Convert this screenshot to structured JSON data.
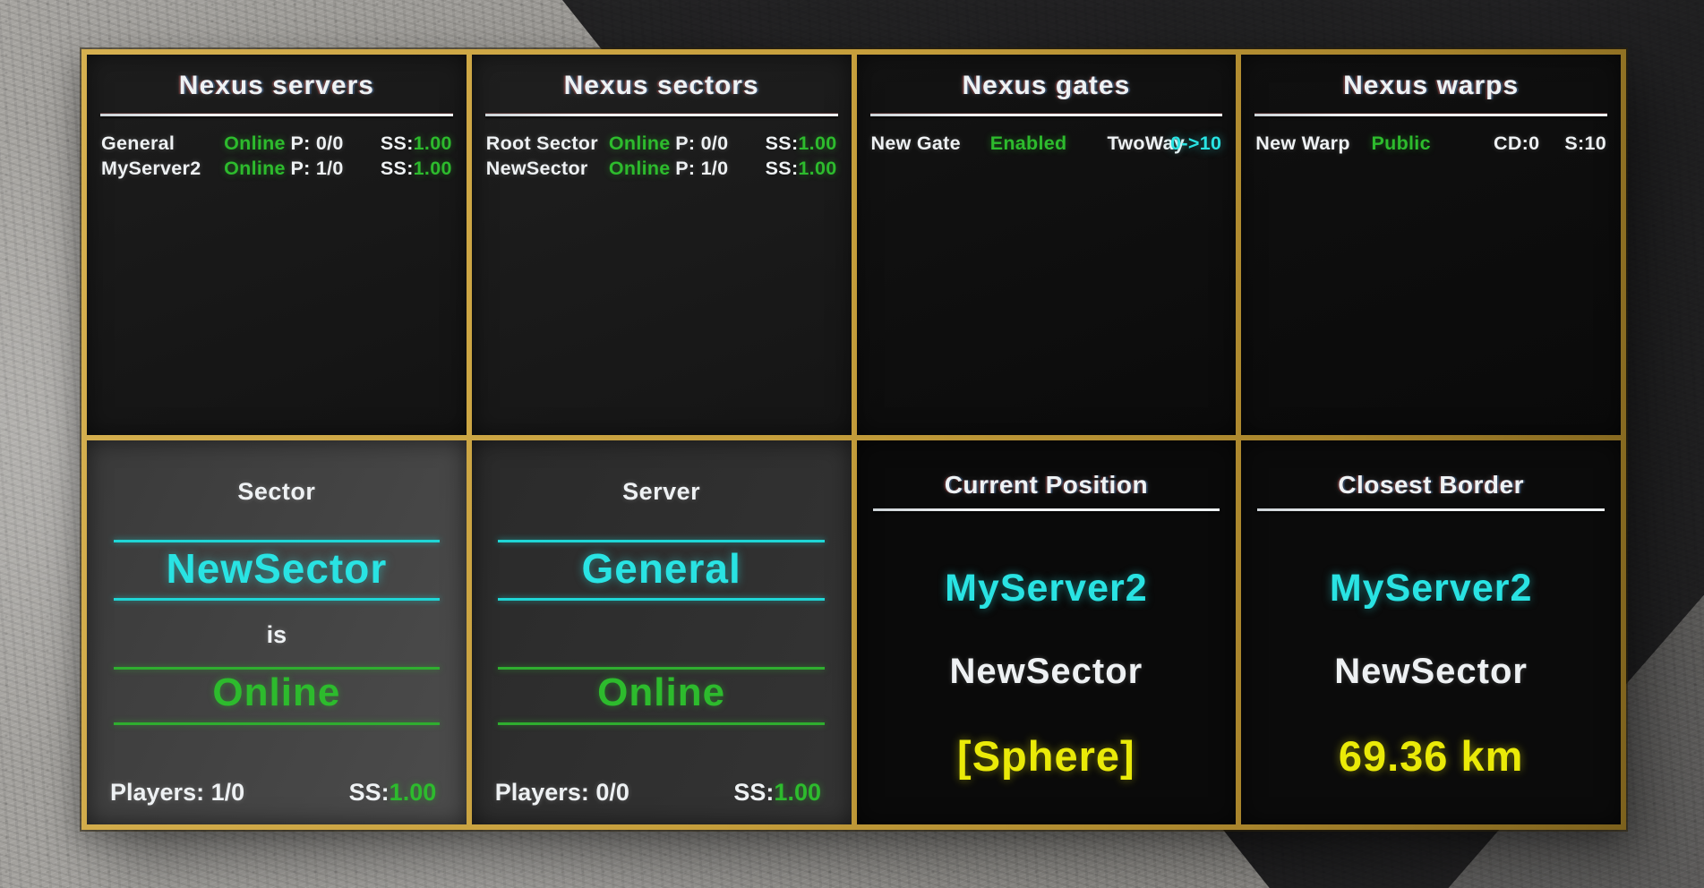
{
  "colors": {
    "frame_gold": "#c69f3c",
    "text_white": "#eef1f3",
    "status_green": "#2dbb2d",
    "accent_cyan": "#29e3e3",
    "highlight_yellow": "#eaea08"
  },
  "panels": {
    "servers": {
      "title": "Nexus servers",
      "rows": [
        {
          "name": "General",
          "status": "Online",
          "players": "P: 0/0",
          "ss_label": "SS:",
          "ss_value": "1.00"
        },
        {
          "name": "MyServer2",
          "status": "Online",
          "players": "P: 1/0",
          "ss_label": "SS:",
          "ss_value": "1.00"
        }
      ]
    },
    "sectors": {
      "title": "Nexus sectors",
      "rows": [
        {
          "name": "Root Sector",
          "status": "Online",
          "players": "P: 0/0",
          "ss_label": "SS:",
          "ss_value": "1.00"
        },
        {
          "name": "NewSector",
          "status": "Online",
          "players": "P: 1/0",
          "ss_label": "SS:",
          "ss_value": "1.00"
        }
      ]
    },
    "gates": {
      "title": "Nexus gates",
      "rows": [
        {
          "name": "New Gate",
          "status": "Enabled",
          "type": "TwoWay",
          "route": "0->10"
        }
      ]
    },
    "warps": {
      "title": "Nexus warps",
      "rows": [
        {
          "name": "New Warp",
          "status": "Public",
          "cooldown": "CD:0",
          "size": "S:10"
        }
      ]
    },
    "sector_status": {
      "title": "Sector",
      "name": "NewSector",
      "connector": "is",
      "status": "Online",
      "players": "Players: 1/0",
      "ss_label": "SS:",
      "ss_value": "1.00"
    },
    "server_status": {
      "title": "Server",
      "name": "General",
      "status": "Online",
      "players": "Players: 0/0",
      "ss_label": "SS:",
      "ss_value": "1.00"
    },
    "current_position": {
      "title": "Current Position",
      "server": "MyServer2",
      "sector": "NewSector",
      "zone": "[Sphere]"
    },
    "closest_border": {
      "title": "Closest Border",
      "server": "MyServer2",
      "sector": "NewSector",
      "distance": "69.36 km"
    }
  }
}
